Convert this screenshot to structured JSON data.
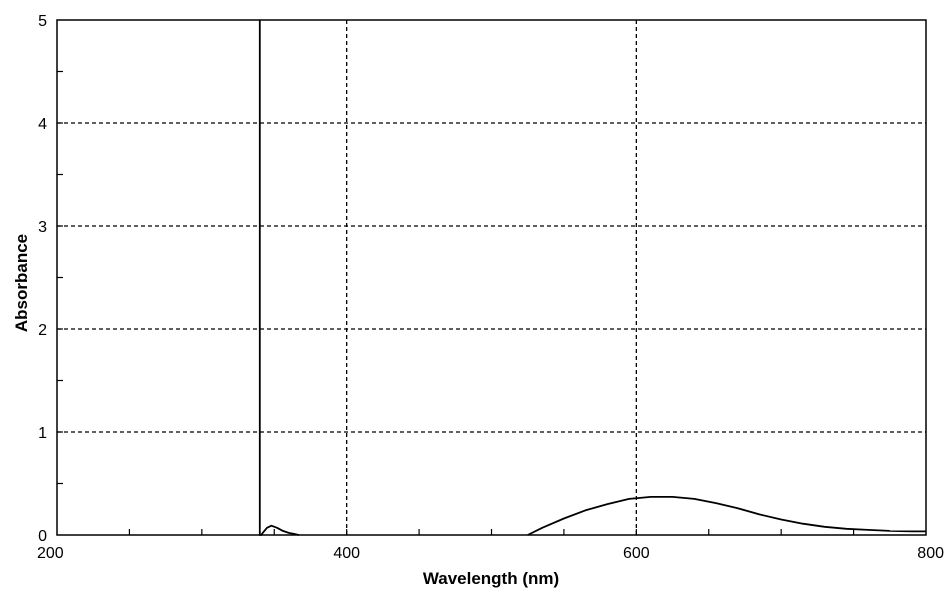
{
  "chart_data": {
    "type": "line",
    "title": "",
    "xlabel": "Wavelength (nm)",
    "ylabel": "Absorbance",
    "xlim": [
      200,
      800
    ],
    "ylim": [
      0,
      5
    ],
    "x_ticks": [
      "200",
      "400",
      "600",
      "800"
    ],
    "y_ticks": [
      "0",
      "1",
      "2",
      "3",
      "4",
      "5"
    ],
    "grid": true,
    "legend": "none",
    "colors": {
      "line": "#000000",
      "grid": "#000000",
      "background": "#ffffff"
    },
    "series": [
      {
        "x": [
          340,
          340,
          340,
          341,
          342,
          345,
          348,
          352,
          356,
          360,
          364,
          367
        ],
        "y": [
          5.0,
          2.5,
          0.0,
          0.0,
          0.02,
          0.07,
          0.09,
          0.07,
          0.04,
          0.02,
          0.01,
          0.0
        ]
      },
      {
        "x": [
          525,
          535,
          550,
          565,
          580,
          595,
          610,
          625,
          640,
          655,
          670,
          685,
          700,
          715,
          730,
          745,
          760,
          775,
          790,
          800
        ],
        "y": [
          0.0,
          0.07,
          0.16,
          0.24,
          0.3,
          0.35,
          0.37,
          0.37,
          0.35,
          0.31,
          0.26,
          0.2,
          0.15,
          0.11,
          0.08,
          0.06,
          0.05,
          0.04,
          0.035,
          0.035
        ]
      }
    ]
  }
}
